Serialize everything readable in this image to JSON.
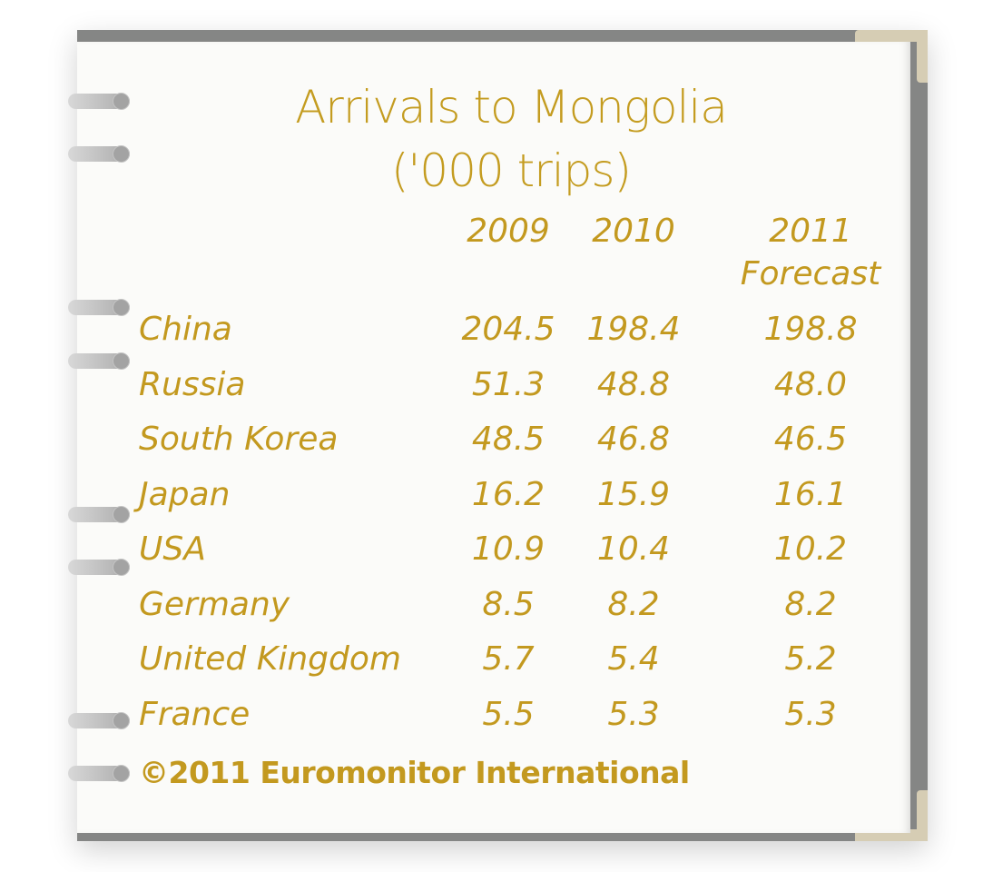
{
  "chart_data": {
    "type": "table",
    "title": "Arrivals to Mongolia",
    "subtitle": "('000 trips)",
    "columns": [
      "2009",
      "2010",
      "2011"
    ],
    "column_subheaders": [
      "",
      "",
      "Forecast"
    ],
    "rows": [
      {
        "country": "China",
        "values": [
          "204.5",
          "198.4",
          "198.8"
        ]
      },
      {
        "country": "Russia",
        "values": [
          "51.3",
          "48.8",
          "48.0"
        ]
      },
      {
        "country": "South Korea",
        "values": [
          "48.5",
          "46.8",
          "46.5"
        ]
      },
      {
        "country": "Japan",
        "values": [
          "16.2",
          "15.9",
          "16.1"
        ]
      },
      {
        "country": "USA",
        "values": [
          "10.9",
          "10.4",
          "10.2"
        ]
      },
      {
        "country": "Germany",
        "values": [
          "8.5",
          "8.2",
          "8.2"
        ]
      },
      {
        "country": "United Kingdom",
        "values": [
          "5.7",
          "5.4",
          "5.2"
        ]
      },
      {
        "country": "France",
        "values": [
          "5.5",
          "5.3",
          "5.3"
        ]
      }
    ],
    "source": "©2011 Euromonitor International"
  },
  "colors": {
    "text": "#c3991f",
    "frame": "#858685",
    "corner": "#d6cdb4"
  }
}
